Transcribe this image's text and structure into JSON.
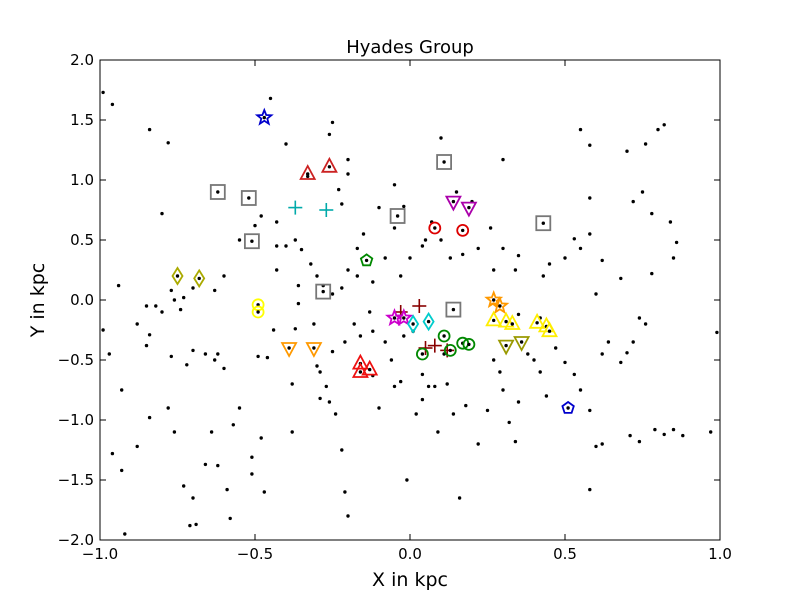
{
  "chart_data": {
    "type": "scatter",
    "title": "Hyades Group",
    "xlabel": "X in kpc",
    "ylabel": "Y in kpc",
    "xlim": [
      -1.0,
      1.0
    ],
    "ylim": [
      -2.0,
      2.0
    ],
    "x_ticks": [
      -1.0,
      -0.5,
      0.0,
      0.5,
      1.0
    ],
    "y_ticks": [
      -2.0,
      -1.5,
      -1.0,
      -0.5,
      0.0,
      0.5,
      1.0,
      1.5,
      2.0
    ],
    "x_tick_labels": [
      "−1.0",
      "−0.5",
      "0.0",
      "0.5",
      "1.0"
    ],
    "y_tick_labels": [
      "−2.0",
      "−1.5",
      "−1.0",
      "−0.5",
      "0.0",
      "0.5",
      "1.0",
      "1.5",
      "2.0"
    ],
    "grid": false,
    "legend": "none",
    "background_points": {
      "color": "#000000",
      "points": [
        [
          -0.99,
          1.73
        ],
        [
          -0.96,
          1.63
        ],
        [
          -0.84,
          1.42
        ],
        [
          -0.78,
          1.31
        ],
        [
          -0.8,
          0.72
        ],
        [
          -0.94,
          0.12
        ],
        [
          -0.99,
          -0.25
        ],
        [
          -0.97,
          -0.45
        ],
        [
          -0.93,
          -0.75
        ],
        [
          -0.96,
          -1.28
        ],
        [
          -0.93,
          -1.42
        ],
        [
          -0.92,
          -1.95
        ],
        [
          -0.88,
          -1.22
        ],
        [
          -0.84,
          -0.98
        ],
        [
          -0.84,
          -0.29
        ],
        [
          -0.85,
          -0.38
        ],
        [
          -0.82,
          -0.05
        ],
        [
          -0.77,
          0.08
        ],
        [
          -0.74,
          -0.08
        ],
        [
          -0.77,
          -0.47
        ],
        [
          -0.72,
          -0.54
        ],
        [
          -0.78,
          -0.9
        ],
        [
          -0.76,
          -1.1
        ],
        [
          -0.73,
          -1.55
        ],
        [
          -0.71,
          -1.88
        ],
        [
          -0.7,
          -1.65
        ],
        [
          -0.69,
          -1.87
        ],
        [
          -0.66,
          -1.37
        ],
        [
          -0.64,
          -1.1
        ],
        [
          -0.62,
          -1.38
        ],
        [
          -0.59,
          -1.58
        ],
        [
          -0.58,
          -1.82
        ],
        [
          -0.57,
          -1.04
        ],
        [
          -0.55,
          -0.9
        ],
        [
          -0.51,
          -1.45
        ],
        [
          -0.51,
          -1.31
        ],
        [
          -0.49,
          -0.47
        ],
        [
          -0.48,
          -1.15
        ],
        [
          -0.47,
          -1.6
        ],
        [
          -0.46,
          -0.48
        ],
        [
          -0.44,
          -0.25
        ],
        [
          -0.43,
          0.25
        ],
        [
          -0.43,
          0.45
        ],
        [
          -0.38,
          -0.7
        ],
        [
          -0.38,
          -1.1
        ],
        [
          -0.37,
          -0.24
        ],
        [
          -0.36,
          0.12
        ],
        [
          -0.35,
          0.42
        ],
        [
          -0.36,
          -0.03
        ],
        [
          -0.31,
          -0.2
        ],
        [
          -0.3,
          -0.55
        ],
        [
          -0.29,
          -0.6
        ],
        [
          -0.29,
          -0.82
        ],
        [
          -0.27,
          -0.72
        ],
        [
          -0.26,
          -0.85
        ],
        [
          -0.24,
          -0.95
        ],
        [
          -0.22,
          -1.25
        ],
        [
          -0.21,
          -1.6
        ],
        [
          -0.2,
          -1.8
        ],
        [
          -0.18,
          -0.2
        ],
        [
          -0.16,
          -0.3
        ],
        [
          -0.13,
          -0.1
        ],
        [
          -0.12,
          -0.63
        ],
        [
          -0.1,
          -0.9
        ],
        [
          -0.08,
          -0.35
        ],
        [
          -0.06,
          -0.5
        ],
        [
          -0.05,
          -0.72
        ],
        [
          -0.03,
          -0.68
        ],
        [
          -0.01,
          -1.5
        ],
        [
          0.02,
          -0.95
        ],
        [
          0.04,
          -0.83
        ],
        [
          0.06,
          -0.72
        ],
        [
          0.08,
          -0.72
        ],
        [
          0.09,
          -1.1
        ],
        [
          0.12,
          -0.7
        ],
        [
          0.14,
          -0.95
        ],
        [
          0.16,
          -1.65
        ],
        [
          0.18,
          -0.88
        ],
        [
          0.22,
          -1.2
        ],
        [
          0.25,
          -0.92
        ],
        [
          0.27,
          -0.5
        ],
        [
          0.29,
          -0.6
        ],
        [
          0.3,
          -0.75
        ],
        [
          0.32,
          -1.02
        ],
        [
          0.34,
          -1.18
        ],
        [
          0.35,
          -0.85
        ],
        [
          0.38,
          -0.45
        ],
        [
          0.4,
          -0.5
        ],
        [
          0.42,
          -0.6
        ],
        [
          0.44,
          -0.8
        ],
        [
          0.47,
          -0.4
        ],
        [
          0.5,
          -0.52
        ],
        [
          0.53,
          -0.62
        ],
        [
          0.55,
          -0.75
        ],
        [
          0.58,
          -0.92
        ],
        [
          0.6,
          -1.22
        ],
        [
          0.62,
          -1.2
        ],
        [
          0.58,
          -1.58
        ],
        [
          0.64,
          -0.35
        ],
        [
          0.62,
          -0.45
        ],
        [
          0.68,
          -0.52
        ],
        [
          0.7,
          -0.44
        ],
        [
          0.72,
          -0.35
        ],
        [
          0.74,
          -0.15
        ],
        [
          0.76,
          -0.2
        ],
        [
          0.71,
          -1.13
        ],
        [
          0.74,
          -1.18
        ],
        [
          0.79,
          -1.08
        ],
        [
          0.82,
          -1.12
        ],
        [
          0.85,
          -1.08
        ],
        [
          0.88,
          -1.13
        ],
        [
          0.97,
          -1.1
        ],
        [
          0.99,
          -0.27
        ],
        [
          0.55,
          1.42
        ],
        [
          0.58,
          1.29
        ],
        [
          0.7,
          1.24
        ],
        [
          0.8,
          1.42
        ],
        [
          0.82,
          1.46
        ],
        [
          0.76,
          1.3
        ],
        [
          0.72,
          0.82
        ],
        [
          0.75,
          0.9
        ],
        [
          0.78,
          0.72
        ],
        [
          0.84,
          0.65
        ],
        [
          0.86,
          0.48
        ],
        [
          0.85,
          0.35
        ],
        [
          0.78,
          0.22
        ],
        [
          0.68,
          0.18
        ],
        [
          0.62,
          0.33
        ],
        [
          0.6,
          0.05
        ],
        [
          0.58,
          0.55
        ],
        [
          0.55,
          0.43
        ],
        [
          0.53,
          0.51
        ],
        [
          0.58,
          0.85
        ],
        [
          0.5,
          0.35
        ],
        [
          0.45,
          0.3
        ],
        [
          0.43,
          0.2
        ],
        [
          0.35,
          0.37
        ],
        [
          0.34,
          0.25
        ],
        [
          0.3,
          0.43
        ],
        [
          0.27,
          0.25
        ],
        [
          0.26,
          0.6
        ],
        [
          0.2,
          0.82
        ],
        [
          0.22,
          0.43
        ],
        [
          0.17,
          0.38
        ],
        [
          0.13,
          0.35
        ],
        [
          0.1,
          0.5
        ],
        [
          0.07,
          0.65
        ],
        [
          0.04,
          0.45
        ],
        [
          0.0,
          0.35
        ],
        [
          -0.03,
          0.2
        ],
        [
          -0.08,
          0.35
        ],
        [
          -0.12,
          0.15
        ],
        [
          -0.17,
          0.2
        ],
        [
          -0.2,
          0.25
        ],
        [
          -0.22,
          0.1
        ],
        [
          -0.25,
          0.05
        ],
        [
          -0.28,
          0.12
        ],
        [
          -0.3,
          0.2
        ],
        [
          -0.32,
          0.3
        ],
        [
          -0.37,
          0.5
        ],
        [
          -0.4,
          0.45
        ],
        [
          -0.43,
          0.65
        ],
        [
          -0.48,
          0.7
        ],
        [
          -0.5,
          0.62
        ],
        [
          -0.55,
          0.5
        ],
        [
          -0.6,
          0.2
        ],
        [
          -0.63,
          0.08
        ],
        [
          -0.7,
          0.1
        ],
        [
          -0.73,
          0.02
        ],
        [
          -0.76,
          0.0
        ],
        [
          -0.8,
          -0.1
        ],
        [
          -0.85,
          -0.05
        ],
        [
          -0.88,
          -0.2
        ],
        [
          -0.62,
          -0.45
        ],
        [
          -0.63,
          -0.5
        ],
        [
          -0.6,
          -0.57
        ],
        [
          -0.7,
          -0.42
        ],
        [
          -0.66,
          -0.45
        ],
        [
          -0.4,
          1.3
        ],
        [
          -0.45,
          1.68
        ],
        [
          -0.33,
          1.03
        ],
        [
          -0.25,
          1.48
        ],
        [
          -0.26,
          1.38
        ],
        [
          -0.2,
          1.17
        ],
        [
          -0.2,
          1.05
        ],
        [
          -0.23,
          0.92
        ],
        [
          -0.22,
          0.8
        ],
        [
          -0.1,
          0.77
        ],
        [
          -0.05,
          0.96
        ],
        [
          -0.02,
          0.78
        ],
        [
          0.1,
          1.35
        ],
        [
          0.15,
          0.9
        ],
        [
          0.3,
          1.17
        ],
        [
          -0.15,
          0.55
        ],
        [
          -0.17,
          0.43
        ],
        [
          -0.05,
          0.6
        ],
        [
          0.05,
          0.5
        ],
        [
          0.04,
          -0.62
        ],
        [
          0.11,
          -0.45
        ],
        [
          0.01,
          -0.26
        ],
        [
          -0.02,
          -0.3
        ],
        [
          -0.21,
          -0.35
        ],
        [
          -0.25,
          -0.43
        ],
        [
          -0.12,
          -0.26
        ],
        [
          0.42,
          -0.15
        ],
        [
          0.35,
          -0.12
        ]
      ]
    },
    "series": [
      {
        "marker": "star",
        "color": "#0000cc",
        "points": [
          [
            -0.47,
            1.52
          ]
        ]
      },
      {
        "marker": "triangle-up",
        "color": "#cc2222",
        "points": [
          [
            -0.33,
            1.05
          ],
          [
            -0.26,
            1.11
          ]
        ]
      },
      {
        "marker": "triangle-up",
        "color": "#ee1111",
        "points": [
          [
            -0.16,
            -0.53
          ],
          [
            -0.13,
            -0.58
          ],
          [
            -0.16,
            -0.6
          ]
        ]
      },
      {
        "marker": "square",
        "color": "#777777",
        "points": [
          [
            -0.62,
            0.9
          ],
          [
            -0.52,
            0.85
          ],
          [
            -0.51,
            0.49
          ],
          [
            -0.28,
            0.07
          ],
          [
            -0.04,
            0.7
          ],
          [
            0.11,
            1.15
          ],
          [
            0.14,
            -0.08
          ],
          [
            0.43,
            0.64
          ]
        ]
      },
      {
        "marker": "plus",
        "color": "#00aaaa",
        "points": [
          [
            -0.37,
            0.77
          ],
          [
            -0.27,
            0.75
          ]
        ]
      },
      {
        "marker": "plus",
        "color": "#880000",
        "points": [
          [
            -0.03,
            -0.1
          ],
          [
            0.03,
            -0.05
          ],
          [
            0.05,
            -0.4
          ],
          [
            0.08,
            -0.38
          ],
          [
            0.12,
            -0.42
          ]
        ]
      },
      {
        "marker": "diamond",
        "color": "#aaaa00",
        "points": [
          [
            -0.75,
            0.2
          ],
          [
            -0.68,
            0.18
          ]
        ]
      },
      {
        "marker": "circle",
        "color": "#ffff00",
        "points": [
          [
            -0.49,
            -0.04
          ],
          [
            -0.49,
            -0.1
          ]
        ]
      },
      {
        "marker": "triangle-down",
        "color": "#ff9900",
        "points": [
          [
            -0.39,
            -0.4
          ],
          [
            -0.31,
            -0.4
          ]
        ]
      },
      {
        "marker": "triangle-down",
        "color": "#aa00aa",
        "points": [
          [
            0.14,
            0.82
          ],
          [
            0.19,
            0.77
          ]
        ]
      },
      {
        "marker": "triangle-down",
        "color": "#999900",
        "points": [
          [
            0.31,
            -0.38
          ],
          [
            0.36,
            -0.35
          ]
        ]
      },
      {
        "marker": "pentagon",
        "color": "#008800",
        "points": [
          [
            -0.14,
            0.33
          ]
        ]
      },
      {
        "marker": "pentagon",
        "color": "#0000cc",
        "points": [
          [
            0.51,
            -0.9
          ]
        ]
      },
      {
        "marker": "star",
        "color": "#cc00cc",
        "points": [
          [
            -0.05,
            -0.15
          ],
          [
            -0.02,
            -0.15
          ]
        ]
      },
      {
        "marker": "diamond",
        "color": "#00cccc",
        "points": [
          [
            0.01,
            -0.2
          ],
          [
            0.06,
            -0.18
          ]
        ]
      },
      {
        "marker": "circle",
        "color": "#dd0000",
        "points": [
          [
            0.08,
            0.6
          ],
          [
            0.17,
            0.58
          ]
        ]
      },
      {
        "marker": "circle",
        "color": "#008800",
        "points": [
          [
            0.04,
            -0.45
          ],
          [
            0.11,
            -0.3
          ],
          [
            0.13,
            -0.42
          ],
          [
            0.17,
            -0.36
          ],
          [
            0.19,
            -0.37
          ]
        ]
      },
      {
        "marker": "star",
        "color": "#ff9900",
        "points": [
          [
            0.27,
            0.0
          ],
          [
            0.29,
            -0.05
          ]
        ]
      },
      {
        "marker": "triangle-up",
        "color": "#ffee00",
        "points": [
          [
            0.27,
            -0.17
          ],
          [
            0.31,
            -0.18
          ],
          [
            0.33,
            -0.2
          ],
          [
            0.41,
            -0.19
          ],
          [
            0.44,
            -0.22
          ],
          [
            0.45,
            -0.26
          ]
        ]
      }
    ]
  }
}
